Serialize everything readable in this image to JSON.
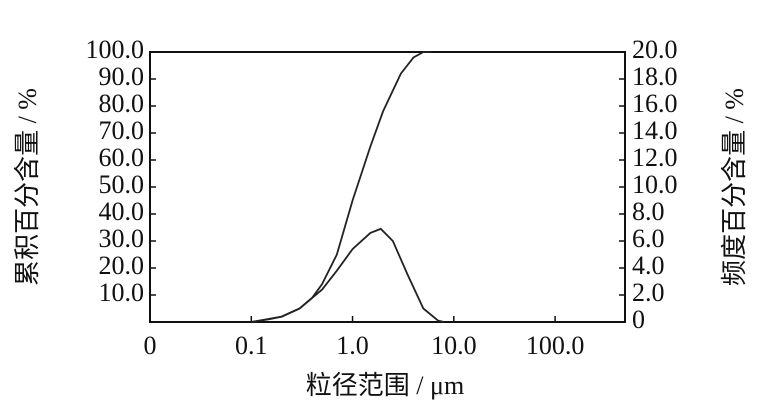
{
  "chart_data": {
    "type": "line",
    "xlabel": "粒径范围 / μm",
    "ylabel": "累积百分含量 / %",
    "y2label": "频度百分含量 / %",
    "xscale": "log",
    "xlim": [
      0.01,
      490
    ],
    "xticks": [
      {
        "value": 0.01,
        "label": "0"
      },
      0.1,
      {
        "value": 1,
        "label": "1.0"
      },
      {
        "value": 10,
        "label": "10.0"
      },
      {
        "value": 100,
        "label": "100.0"
      }
    ],
    "ylim": [
      0,
      100
    ],
    "yticks": [
      {
        "value": 10,
        "label": "10.0"
      },
      {
        "value": 20,
        "label": "20.0"
      },
      {
        "value": 30,
        "label": "30.0"
      },
      {
        "value": 40,
        "label": "40.0"
      },
      {
        "value": 50,
        "label": "50.0"
      },
      {
        "value": 60,
        "label": "60.0"
      },
      {
        "value": 70,
        "label": "70.0"
      },
      {
        "value": 80,
        "label": "80.0"
      },
      {
        "value": 90,
        "label": "90.0"
      },
      {
        "value": 100,
        "label": "100.0"
      }
    ],
    "y2lim": [
      0,
      20
    ],
    "y2ticks": [
      0,
      {
        "value": 2,
        "label": "2.0"
      },
      {
        "value": 4,
        "label": "4.0"
      },
      {
        "value": 6,
        "label": "6.0"
      },
      {
        "value": 8,
        "label": "8.0"
      },
      {
        "value": 10,
        "label": "10.0"
      },
      {
        "value": 12,
        "label": "12.0"
      },
      {
        "value": 14,
        "label": "14.0"
      },
      {
        "value": 16,
        "label": "16.0"
      },
      {
        "value": 18,
        "label": "18.0"
      },
      {
        "value": 20,
        "label": "20.0"
      }
    ],
    "series": [
      {
        "color": "#222222",
        "x": [
          0.1,
          0.15,
          0.2,
          0.3,
          0.4,
          0.5,
          0.7,
          1.0,
          1.5,
          2.0,
          3.0,
          4.0,
          5.0,
          6.0
        ],
        "values": [
          0,
          1,
          2,
          5,
          9,
          14,
          25,
          45,
          65,
          78,
          92,
          98,
          100,
          100
        ]
      },
      {
        "color": "#222222",
        "axis": "y2",
        "x": [
          0.1,
          0.2,
          0.3,
          0.5,
          0.7,
          1.0,
          1.5,
          1.9,
          2.5,
          3.5,
          5.0,
          7.0,
          8.0
        ],
        "values": [
          0,
          0.4,
          1.0,
          2.4,
          3.8,
          5.4,
          6.6,
          6.9,
          6.0,
          3.5,
          1.0,
          0.1,
          0
        ]
      }
    ]
  }
}
